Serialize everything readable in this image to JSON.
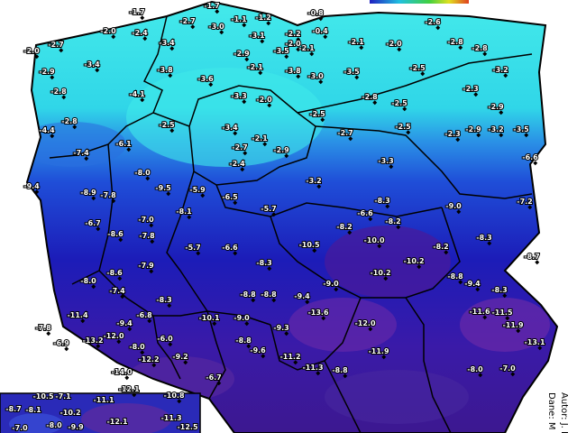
{
  "labels": [
    "-1.7",
    "-1.7",
    "-2.7",
    "-3.0",
    "-1.1",
    "-1.2",
    "-0.8",
    "-2.6",
    "-2.0",
    "-2.4",
    "-3.1",
    "-2.2",
    "-2.0",
    "-2.0",
    "-2.7",
    "-3.4",
    "-2.9",
    "-3.5",
    "-2.1",
    "-0.4",
    "-2.1",
    "-2.0",
    "-2.8",
    "-2.8",
    "-2.9",
    "-3.4",
    "-3.8",
    "-2.1",
    "-3.8",
    "-3.0",
    "-3.5",
    "-2.5",
    "-3.2",
    "-3.6",
    "-2.8",
    "-4.1",
    "-3.3",
    "-2.0",
    "-2.8",
    "-2.5",
    "-2.3",
    "-2.9",
    "-2.8",
    "-2.5",
    "-3.4",
    "-2.5",
    "-2.5",
    "-2.3",
    "-2.9",
    "-3.2",
    "-3.5",
    "-4.4",
    "-2.1",
    "-2.7",
    "-2.9",
    "-2.7",
    "-6.1",
    "-7.4",
    "-6.6",
    "-3.3",
    "-2.4",
    "-9.4",
    "-8.0",
    "-9.5",
    "-5.9",
    "-3.2",
    "-8.9",
    "-7.8",
    "-8.1",
    "-6.5",
    "-7.2",
    "-8.3",
    "-9.0",
    "-6.6",
    "-5.7",
    "-7.0",
    "-6.7",
    "-8.2",
    "-8.2",
    "-8.3",
    "-8.2",
    "-7.8",
    "-8.6",
    "-5.7",
    "-6.6",
    "-10.5",
    "-10.0",
    "-8.7",
    "-7.9",
    "-8.3",
    "-10.2",
    "-10.2",
    "-8.0",
    "-8.6",
    "-8.8",
    "-7.4",
    "-9.0",
    "-9.4",
    "-8.3",
    "-8.3",
    "-8.8",
    "-8.8",
    "-9.4",
    "-11.4",
    "-13.6",
    "-11.6",
    "-11.5",
    "-10.1",
    "-9.0",
    "-7.8",
    "-6.9",
    "-13.2",
    "-9.4",
    "-6.8",
    "-12.0",
    "-11.9",
    "-9.3",
    "-12.0",
    "-8.8",
    "-6.0",
    "-13.1",
    "-9.6",
    "-11.9",
    "-8.0",
    "-12.2",
    "-9.2",
    "-11.2",
    "-14.0",
    "-6.7",
    "-11.3",
    "-8.8",
    "-8.0",
    "-7.0",
    "-12.1",
    "-10.8"
  ],
  "inset": {
    "labels": [
      "-10.5",
      "-7.1",
      "-11.1",
      "-8.7",
      "-8.1",
      "-10.2",
      "-9.9",
      "-12.1",
      "-11.3",
      "-7.0",
      "-8.0",
      "-12.5"
    ]
  },
  "credits": [
    "Autor: J. L",
    "Dane: M"
  ]
}
